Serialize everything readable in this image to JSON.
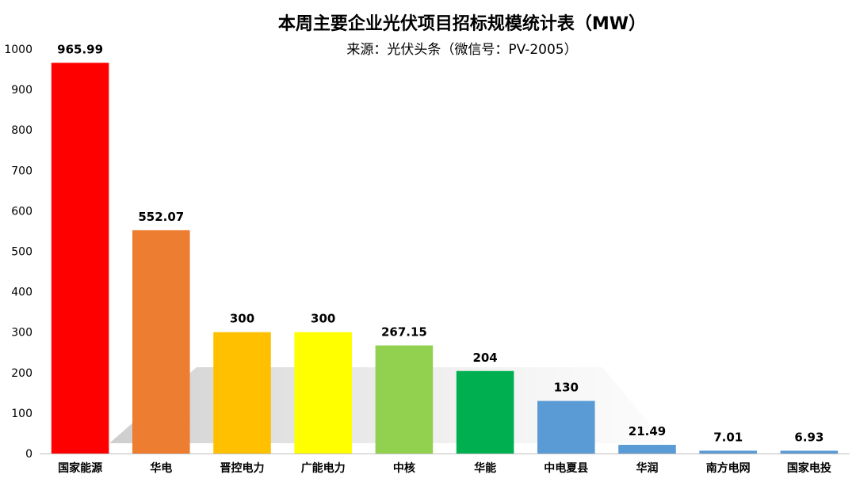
{
  "chart_data": {
    "type": "bar",
    "title": "本周主要企业光伏项目招标规模统计表（MW）",
    "subtitle": "来源：光伏头条（微信号：PV-2005）",
    "categories": [
      "国家能源",
      "华电",
      "晋控电力",
      "广能电力",
      "中核",
      "华能",
      "中电夏县",
      "华润",
      "南方电网",
      "国家电投"
    ],
    "values": [
      965.99,
      552.07,
      300,
      300,
      267.15,
      204,
      130,
      21.49,
      7.01,
      6.93
    ],
    "data_labels": [
      "965.99",
      "552.07",
      "300",
      "300",
      "267.15",
      "204",
      "130",
      "21.49",
      "7.01",
      "6.93"
    ],
    "colors": [
      "#ff0000",
      "#ed7d31",
      "#ffc000",
      "#ffff00",
      "#92d050",
      "#00b050",
      "#5b9bd5",
      "#5b9bd5",
      "#5b9bd5",
      "#5b9bd5"
    ],
    "ylim": [
      0,
      1000
    ],
    "yticks": [
      "0",
      "100",
      "200",
      "300",
      "400",
      "500",
      "600",
      "700",
      "800",
      "900",
      "1000"
    ],
    "ytick_values": [
      0,
      100,
      200,
      300,
      400,
      500,
      600,
      700,
      800,
      900,
      1000
    ],
    "grid": false,
    "legend": "none",
    "xlabel": "",
    "ylabel": ""
  }
}
